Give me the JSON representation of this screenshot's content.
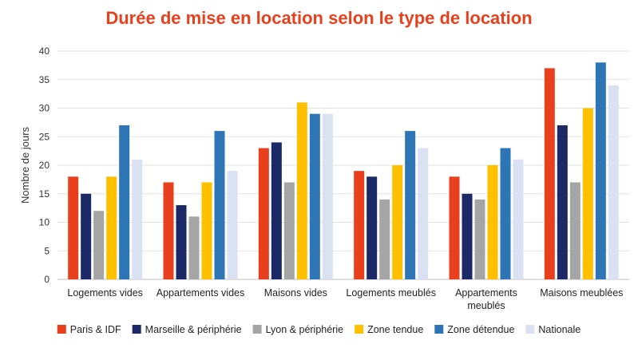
{
  "chart_data": {
    "type": "bar",
    "title": "Durée de mise en location selon le type de location",
    "xlabel": "",
    "ylabel": "Nombre de jours",
    "ylim": [
      0,
      40
    ],
    "yticks": [
      0,
      5,
      10,
      15,
      20,
      25,
      30,
      35,
      40
    ],
    "grid": true,
    "legend": "bottom",
    "categories": [
      [
        "Logements vides"
      ],
      [
        "Appartements vides"
      ],
      [
        "Maisons vides"
      ],
      [
        "Logements meublés"
      ],
      [
        "Appartements",
        "meublés"
      ],
      [
        "Maisons meublées"
      ]
    ],
    "series": [
      {
        "name": "Paris & IDF",
        "color": "#e8401c",
        "values": [
          18,
          17,
          23,
          19,
          18,
          37
        ]
      },
      {
        "name": "Marseille & périphérie",
        "color": "#1b2a66",
        "values": [
          15,
          13,
          24,
          18,
          15,
          27
        ]
      },
      {
        "name": "Lyon & périphérie",
        "color": "#a5a5a5",
        "values": [
          12,
          11,
          17,
          14,
          14,
          17
        ]
      },
      {
        "name": "Zone tendue",
        "color": "#ffc000",
        "values": [
          18,
          17,
          31,
          20,
          20,
          30
        ]
      },
      {
        "name": "Zone détendue",
        "color": "#2e75b6",
        "values": [
          27,
          26,
          29,
          26,
          23,
          38
        ]
      },
      {
        "name": "Nationale",
        "color": "#d9e1f2",
        "values": [
          21,
          19,
          29,
          23,
          21,
          34
        ]
      }
    ]
  }
}
